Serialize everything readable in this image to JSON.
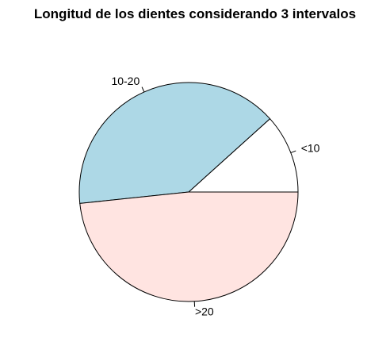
{
  "chart_data": {
    "type": "pie",
    "title": "Longitud de los dientes considerando 3 intervalos",
    "slices": [
      {
        "label": "<10",
        "value": 7,
        "color": "#ffffff"
      },
      {
        "label": "10-20",
        "value": 24,
        "color": "#add8e6"
      },
      {
        "label": ">20",
        "value": 29,
        "color": "#ffe4e1"
      }
    ],
    "start_angle_deg": 0,
    "direction": "counterclockwise",
    "border_color": "#000000"
  }
}
